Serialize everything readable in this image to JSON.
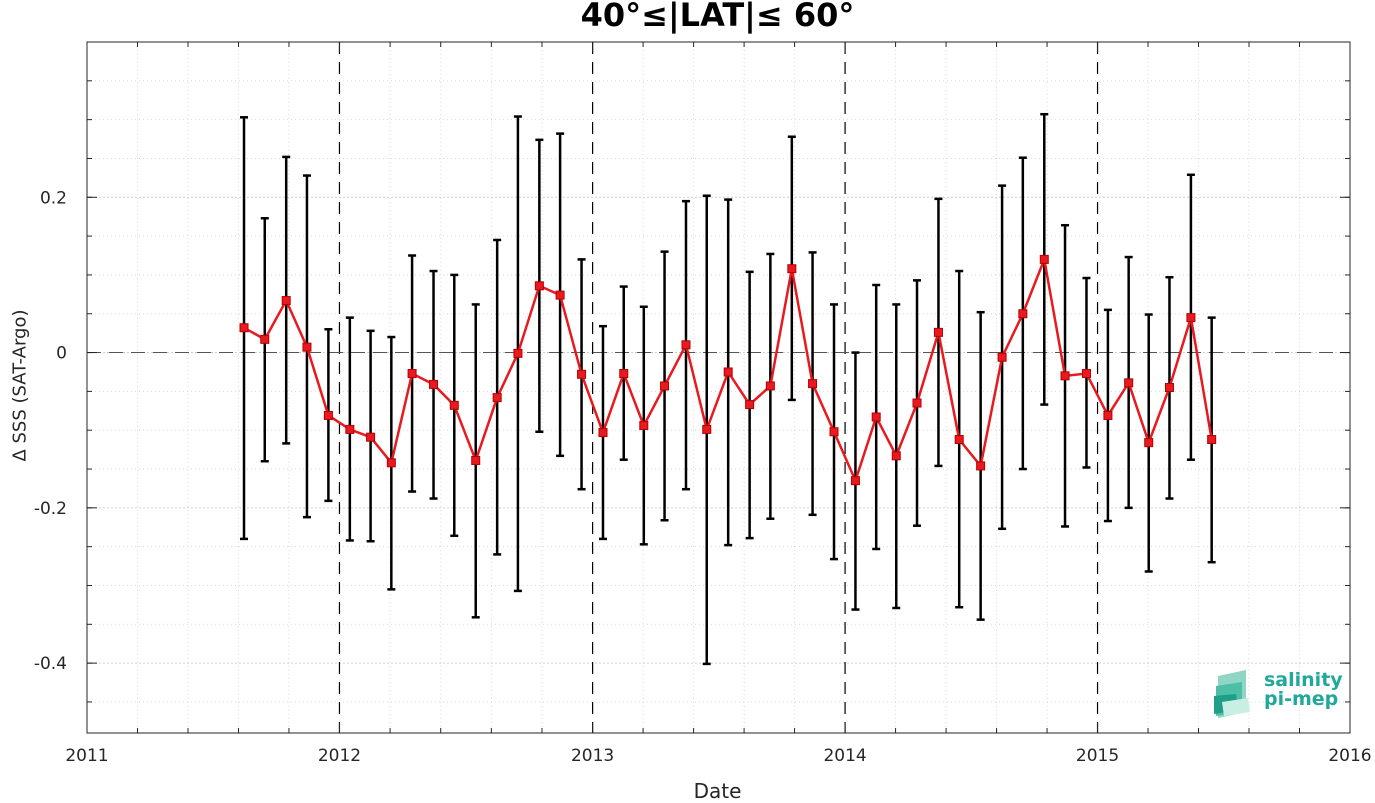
{
  "chart_data": {
    "type": "line",
    "title": "40°≤|LAT|≤ 60°",
    "xlabel": "Date",
    "ylabel": "Δ SSS (SAT-Argo)",
    "xlim": [
      "2011-01-01",
      "2016-01-01"
    ],
    "ylim": [
      -0.49,
      0.4
    ],
    "x_tick_labels": [
      "2011",
      "2012",
      "2013",
      "2014",
      "2015",
      "2016"
    ],
    "y_tick_labels": [
      "-0.4",
      "-0.2",
      "0",
      "0.2"
    ],
    "y_ticks": [
      -0.4,
      -0.2,
      0,
      0.2
    ],
    "grid": true,
    "reference_line_y": 0,
    "year_boundaries": [
      "2012",
      "2013",
      "2014",
      "2015"
    ],
    "series": [
      {
        "marker": "square",
        "color": "#e8191f",
        "errorbar_color": "#000000",
        "points": [
          {
            "date": "2011-08-16",
            "mean": 0.032,
            "lo": -0.24,
            "hi": 0.303
          },
          {
            "date": "2011-09-15",
            "mean": 0.017,
            "lo": -0.14,
            "hi": 0.173
          },
          {
            "date": "2011-10-16",
            "mean": 0.067,
            "lo": -0.117,
            "hi": 0.252
          },
          {
            "date": "2011-11-15",
            "mean": 0.007,
            "lo": -0.212,
            "hi": 0.228
          },
          {
            "date": "2011-12-16",
            "mean": -0.081,
            "lo": -0.191,
            "hi": 0.03
          },
          {
            "date": "2012-01-16",
            "mean": -0.099,
            "lo": -0.242,
            "hi": 0.045
          },
          {
            "date": "2012-02-15",
            "mean": -0.109,
            "lo": -0.243,
            "hi": 0.028
          },
          {
            "date": "2012-03-16",
            "mean": -0.142,
            "lo": -0.305,
            "hi": 0.02
          },
          {
            "date": "2012-04-15",
            "mean": -0.027,
            "lo": -0.179,
            "hi": 0.125
          },
          {
            "date": "2012-05-16",
            "mean": -0.041,
            "lo": -0.188,
            "hi": 0.105
          },
          {
            "date": "2012-06-15",
            "mean": -0.068,
            "lo": -0.236,
            "hi": 0.1
          },
          {
            "date": "2012-07-16",
            "mean": -0.139,
            "lo": -0.341,
            "hi": 0.062
          },
          {
            "date": "2012-08-16",
            "mean": -0.058,
            "lo": -0.26,
            "hi": 0.145
          },
          {
            "date": "2012-09-15",
            "mean": -0.001,
            "lo": -0.307,
            "hi": 0.304
          },
          {
            "date": "2012-10-16",
            "mean": 0.086,
            "lo": -0.102,
            "hi": 0.274
          },
          {
            "date": "2012-11-15",
            "mean": 0.074,
            "lo": -0.133,
            "hi": 0.282
          },
          {
            "date": "2012-12-16",
            "mean": -0.028,
            "lo": -0.176,
            "hi": 0.12
          },
          {
            "date": "2013-01-16",
            "mean": -0.103,
            "lo": -0.24,
            "hi": 0.034
          },
          {
            "date": "2013-02-15",
            "mean": -0.027,
            "lo": -0.138,
            "hi": 0.085
          },
          {
            "date": "2013-03-16",
            "mean": -0.094,
            "lo": -0.247,
            "hi": 0.059
          },
          {
            "date": "2013-04-15",
            "mean": -0.043,
            "lo": -0.216,
            "hi": 0.13
          },
          {
            "date": "2013-05-16",
            "mean": 0.01,
            "lo": -0.176,
            "hi": 0.195
          },
          {
            "date": "2013-06-15",
            "mean": -0.099,
            "lo": -0.401,
            "hi": 0.202
          },
          {
            "date": "2013-07-16",
            "mean": -0.025,
            "lo": -0.248,
            "hi": 0.197
          },
          {
            "date": "2013-08-16",
            "mean": -0.067,
            "lo": -0.239,
            "hi": 0.104
          },
          {
            "date": "2013-09-15",
            "mean": -0.043,
            "lo": -0.214,
            "hi": 0.127
          },
          {
            "date": "2013-10-16",
            "mean": 0.108,
            "lo": -0.061,
            "hi": 0.278
          },
          {
            "date": "2013-11-15",
            "mean": -0.04,
            "lo": -0.209,
            "hi": 0.129
          },
          {
            "date": "2013-12-16",
            "mean": -0.102,
            "lo": -0.266,
            "hi": 0.062
          },
          {
            "date": "2014-01-16",
            "mean": -0.165,
            "lo": -0.331,
            "hi": 0.0
          },
          {
            "date": "2014-02-15",
            "mean": -0.083,
            "lo": -0.253,
            "hi": 0.087
          },
          {
            "date": "2014-03-16",
            "mean": -0.133,
            "lo": -0.329,
            "hi": 0.062
          },
          {
            "date": "2014-04-15",
            "mean": -0.065,
            "lo": -0.223,
            "hi": 0.093
          },
          {
            "date": "2014-05-16",
            "mean": 0.026,
            "lo": -0.146,
            "hi": 0.198
          },
          {
            "date": "2014-06-15",
            "mean": -0.112,
            "lo": -0.328,
            "hi": 0.105
          },
          {
            "date": "2014-07-16",
            "mean": -0.146,
            "lo": -0.344,
            "hi": 0.052
          },
          {
            "date": "2014-08-16",
            "mean": -0.006,
            "lo": -0.227,
            "hi": 0.215
          },
          {
            "date": "2014-09-15",
            "mean": 0.05,
            "lo": -0.15,
            "hi": 0.251
          },
          {
            "date": "2014-10-16",
            "mean": 0.12,
            "lo": -0.067,
            "hi": 0.307
          },
          {
            "date": "2014-11-15",
            "mean": -0.03,
            "lo": -0.224,
            "hi": 0.164
          },
          {
            "date": "2014-12-16",
            "mean": -0.027,
            "lo": -0.148,
            "hi": 0.096
          },
          {
            "date": "2015-01-16",
            "mean": -0.081,
            "lo": -0.217,
            "hi": 0.055
          },
          {
            "date": "2015-02-15",
            "mean": -0.039,
            "lo": -0.2,
            "hi": 0.123
          },
          {
            "date": "2015-03-16",
            "mean": -0.116,
            "lo": -0.282,
            "hi": 0.049
          },
          {
            "date": "2015-04-15",
            "mean": -0.045,
            "lo": -0.188,
            "hi": 0.097
          },
          {
            "date": "2015-05-16",
            "mean": 0.045,
            "lo": -0.138,
            "hi": 0.229
          },
          {
            "date": "2015-06-15",
            "mean": -0.112,
            "lo": -0.27,
            "hi": 0.045
          }
        ]
      }
    ]
  },
  "logo": {
    "line1": "salinity",
    "line2": "pi-mep",
    "icon": "salinity-pimep-logo-icon",
    "color": "#20a89a"
  }
}
